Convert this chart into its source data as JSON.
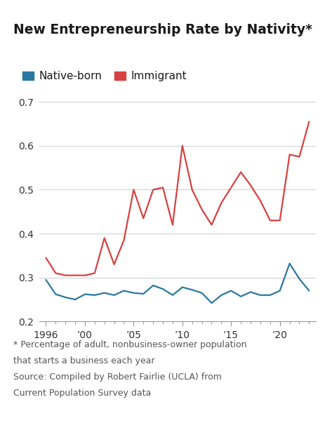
{
  "title": "New Entrepreneurship Rate by Nativity*",
  "title_fontsize": 13.5,
  "legend_labels": [
    "Native-born",
    "Immigrant"
  ],
  "native_color": "#2978A0",
  "immigrant_color": "#D94040",
  "years": [
    1996,
    1997,
    1998,
    1999,
    2000,
    2001,
    2002,
    2003,
    2004,
    2005,
    2006,
    2007,
    2008,
    2009,
    2010,
    2011,
    2012,
    2013,
    2014,
    2015,
    2016,
    2017,
    2018,
    2019,
    2020,
    2021,
    2022,
    2023
  ],
  "native_born": [
    0.295,
    0.262,
    0.255,
    0.25,
    0.262,
    0.26,
    0.265,
    0.26,
    0.27,
    0.265,
    0.263,
    0.282,
    0.274,
    0.26,
    0.278,
    0.272,
    0.265,
    0.242,
    0.26,
    0.27,
    0.257,
    0.267,
    0.26,
    0.26,
    0.27,
    0.332,
    0.297,
    0.27
  ],
  "immigrant": [
    0.345,
    0.31,
    0.305,
    0.305,
    0.305,
    0.31,
    0.39,
    0.33,
    0.385,
    0.5,
    0.435,
    0.5,
    0.505,
    0.42,
    0.6,
    0.5,
    0.455,
    0.42,
    0.47,
    0.505,
    0.54,
    0.51,
    0.475,
    0.43,
    0.43,
    0.58,
    0.575,
    0.655
  ],
  "ylim": [
    0.2,
    0.72
  ],
  "yticks": [
    0.2,
    0.3,
    0.4,
    0.5,
    0.6,
    0.7
  ],
  "xtick_years": [
    1996,
    2000,
    2005,
    2010,
    2015,
    2020
  ],
  "xtick_labels": [
    "1996",
    "’00",
    "’05",
    "’10",
    "’15",
    "’20"
  ],
  "footnote_line1": "* Percentage of adult, nonbusiness-owner population",
  "footnote_line2": "that starts a business each year",
  "footnote_line3": "Source: Compiled by Robert Fairlie (UCLA) from",
  "footnote_line4": "Current Population Survey data",
  "footnote_fontsize": 9,
  "bg_color": "#FFFFFF",
  "grid_color": "#CCCCCC",
  "line_width": 1.6
}
